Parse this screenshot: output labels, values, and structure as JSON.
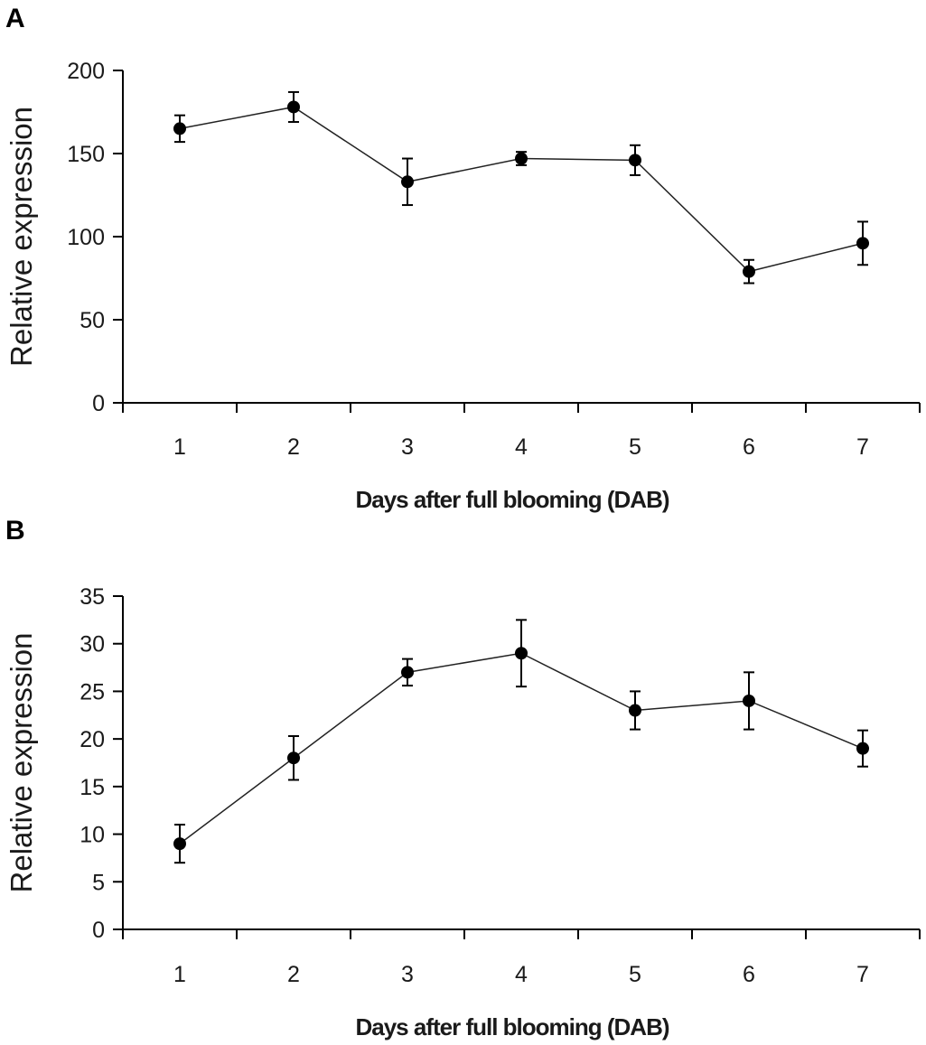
{
  "chart_data": [
    {
      "panel": "A",
      "type": "line",
      "title": "",
      "xlabel": "Days after full blooming (DAB)",
      "ylabel": "Relative expression",
      "ylim": [
        0,
        200
      ],
      "yticks": [
        0,
        50,
        100,
        150,
        200
      ],
      "categories": [
        "1",
        "2",
        "3",
        "4",
        "5",
        "6",
        "7"
      ],
      "series": [
        {
          "name": "Relative expression",
          "values": [
            165,
            178,
            133,
            147,
            146,
            79,
            96
          ],
          "error": [
            8,
            9,
            14,
            4,
            9,
            7,
            13
          ]
        }
      ]
    },
    {
      "panel": "B",
      "type": "line",
      "title": "",
      "xlabel": "Days after full blooming (DAB)",
      "ylabel": "Relative expression",
      "ylim": [
        0,
        35
      ],
      "yticks": [
        0,
        5,
        10,
        15,
        20,
        25,
        30,
        35
      ],
      "categories": [
        "1",
        "2",
        "3",
        "4",
        "5",
        "6",
        "7"
      ],
      "series": [
        {
          "name": "Relative expression",
          "values": [
            9,
            18,
            27,
            29,
            23,
            24,
            19
          ],
          "error": [
            2,
            2.3,
            1.4,
            3.5,
            2,
            3,
            1.9
          ]
        }
      ]
    }
  ]
}
